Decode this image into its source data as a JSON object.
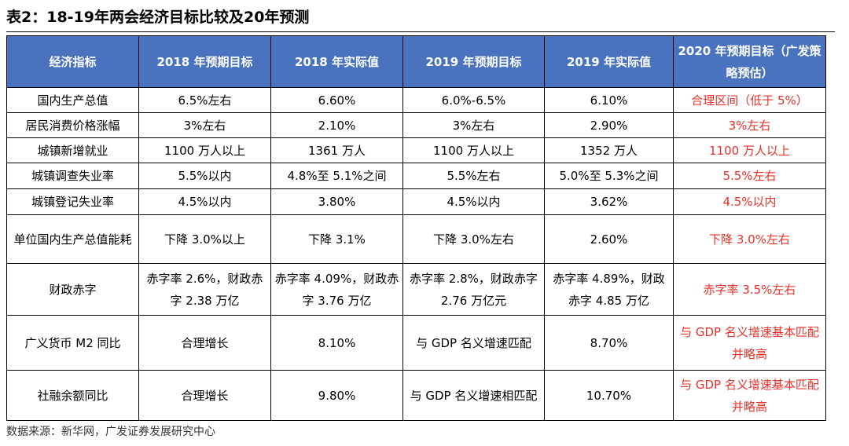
{
  "title": "表2：18-19年两会经济目标比较及20年预测",
  "table": {
    "headers": [
      "经济指标",
      "2018 年预期目标",
      "2018 年实际值",
      "2019 年预期目标",
      "2019 年实际值",
      "2020 年预期目标（广发策略预估）"
    ],
    "rows": [
      [
        "国内生产总值",
        "6.5%左右",
        "6.60%",
        "6.0%-6.5%",
        "6.10%",
        "合理区间（低于 5%）"
      ],
      [
        "居民消费价格涨幅",
        "3%左右",
        "2.10%",
        "3%左右",
        "2.90%",
        "3%左右"
      ],
      [
        "城镇新增就业",
        "1100 万人以上",
        "1361 万人",
        "1100 万人以上",
        "1352 万人",
        "1100 万人以上"
      ],
      [
        "城镇调查失业率",
        "5.5%以内",
        "4.8%至 5.1%之间",
        "5.5%左右",
        "5.0%至 5.3%之间",
        "5.5%左右"
      ],
      [
        "城镇登记失业率",
        "4.5%以内",
        "3.80%",
        "4.5%以内",
        "3.62%",
        "4.5%以内"
      ],
      [
        "单位国内生产总值能耗",
        "下降 3.0%以上",
        "下降 3.1%",
        "下降 3.0%左右",
        "2.60%",
        "下降 3.0%左右"
      ],
      [
        "财政赤字",
        "赤字率 2.6%，财政赤字 2.38 万亿",
        "赤字率 4.09%，财政赤字 3.76 万亿",
        "赤字率 2.8%，财政赤字 2.76 万亿元",
        "赤字率 4.89%，财政赤字 4.85 万亿",
        "赤字率 3.5%左右"
      ],
      [
        "广义货币 M2 同比",
        "合理增长",
        "8.10%",
        "与 GDP 名义增速匹配",
        "8.70%",
        "与 GDP 名义增速基本匹配并略高"
      ],
      [
        "社融余额同比",
        "合理增长",
        "9.80%",
        "与 GDP 名义增速相匹配",
        "10.70%",
        "与 GDP 名义增速基本匹配并略高"
      ]
    ]
  },
  "footer": "数据来源：新华网，广发证券发展研究中心",
  "colors": {
    "header_bg": "#4a73bf",
    "header_text": "#ffffff",
    "forecast_text": "#e8302a"
  }
}
